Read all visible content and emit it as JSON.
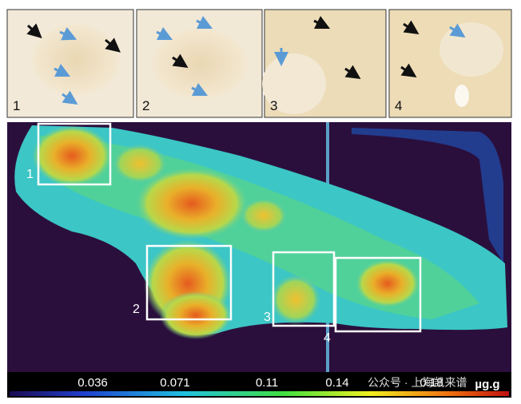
{
  "panels": [
    {
      "label": "1"
    },
    {
      "label": "2"
    },
    {
      "label": "3"
    },
    {
      "label": "4"
    }
  ],
  "map": {
    "boxes": [
      {
        "label": "1"
      },
      {
        "label": "2"
      },
      {
        "label": "3"
      },
      {
        "label": "4"
      }
    ],
    "colorbar": {
      "ticks": [
        "0.036",
        "0.071",
        "0.11",
        "0.14",
        "0.18"
      ],
      "unit": "µg.g"
    }
  },
  "watermark": "公众号 · 上海凯来谱"
}
